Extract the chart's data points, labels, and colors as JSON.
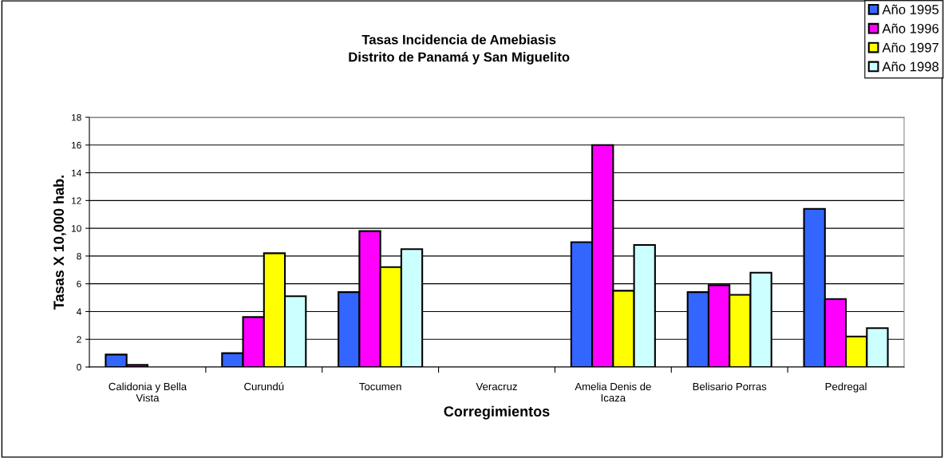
{
  "chart_data": {
    "type": "bar",
    "title": "Tasas Incidencia de Amebiasis\nDistrito de Panamá y San Miguelito",
    "xlabel": "Corregimientos",
    "ylabel": "Tasas X 10,000 hab.",
    "categories": [
      "Calidonia y Bella\nVista",
      "Curundú",
      "Tocumen",
      "Veracruz",
      "Amelia Denis de\nIcaza",
      "Belisario Porras",
      "Pedregal"
    ],
    "series": [
      {
        "name": "Año 1995",
        "color": "#3366ff",
        "values": [
          0.9,
          1.0,
          5.4,
          null,
          9.0,
          5.4,
          11.4
        ]
      },
      {
        "name": "Año 1996",
        "color": "#ff00ff",
        "values": [
          0.15,
          3.6,
          9.8,
          null,
          16.0,
          5.9,
          4.9
        ]
      },
      {
        "name": "Año 1997",
        "color": "#ffff00",
        "values": [
          null,
          8.2,
          7.2,
          null,
          5.5,
          5.2,
          2.2
        ]
      },
      {
        "name": "Año 1998",
        "color": "#ccffff",
        "values": [
          null,
          5.1,
          8.5,
          null,
          8.8,
          6.8,
          2.8
        ]
      }
    ],
    "ylim": [
      0,
      18
    ],
    "yticks": [
      0,
      2,
      4,
      6,
      8,
      10,
      12,
      14,
      16,
      18
    ],
    "grid": "y",
    "legend": "top right"
  }
}
